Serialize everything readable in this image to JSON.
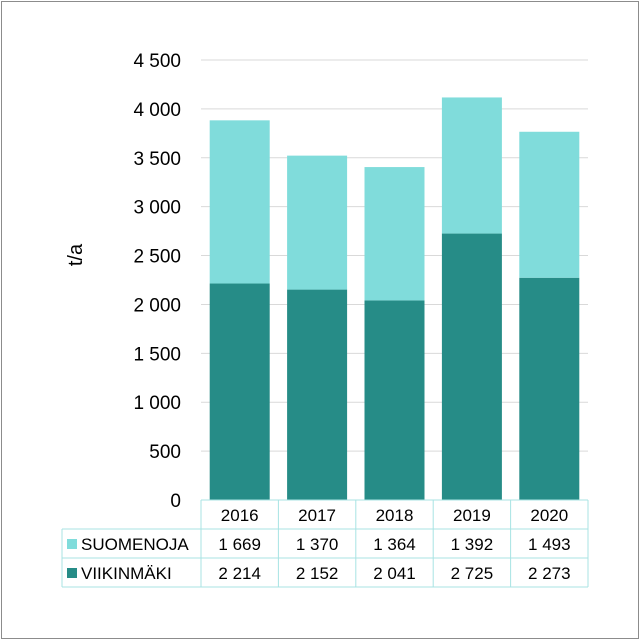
{
  "chart_data": {
    "type": "bar",
    "stacked": true,
    "ylabel": "t/a",
    "ylim": [
      0,
      4500
    ],
    "yticks": [
      0,
      500,
      1000,
      1500,
      2000,
      2500,
      3000,
      3500,
      4000,
      4500
    ],
    "ytick_labels": [
      "0",
      "500",
      "1 000",
      "1 500",
      "2 000",
      "2 500",
      "3 000",
      "3 500",
      "4 000",
      "4 500"
    ],
    "grid": true,
    "legend_placement": "data-table",
    "categories": [
      "2016",
      "2017",
      "2018",
      "2019",
      "2020"
    ],
    "series": [
      {
        "name": "SUOMENOJA",
        "color": "#80dcdb",
        "values": [
          1669,
          1370,
          1364,
          1392,
          1493
        ],
        "value_labels": [
          "1 669",
          "1 370",
          "1 364",
          "1 392",
          "1 493"
        ]
      },
      {
        "name": "VIIKINMÄKI",
        "color": "#268c87",
        "values": [
          2214,
          2152,
          2041,
          2725,
          2273
        ],
        "value_labels": [
          "2 214",
          "2 152",
          "2 041",
          "2 725",
          "2 273"
        ]
      }
    ]
  }
}
